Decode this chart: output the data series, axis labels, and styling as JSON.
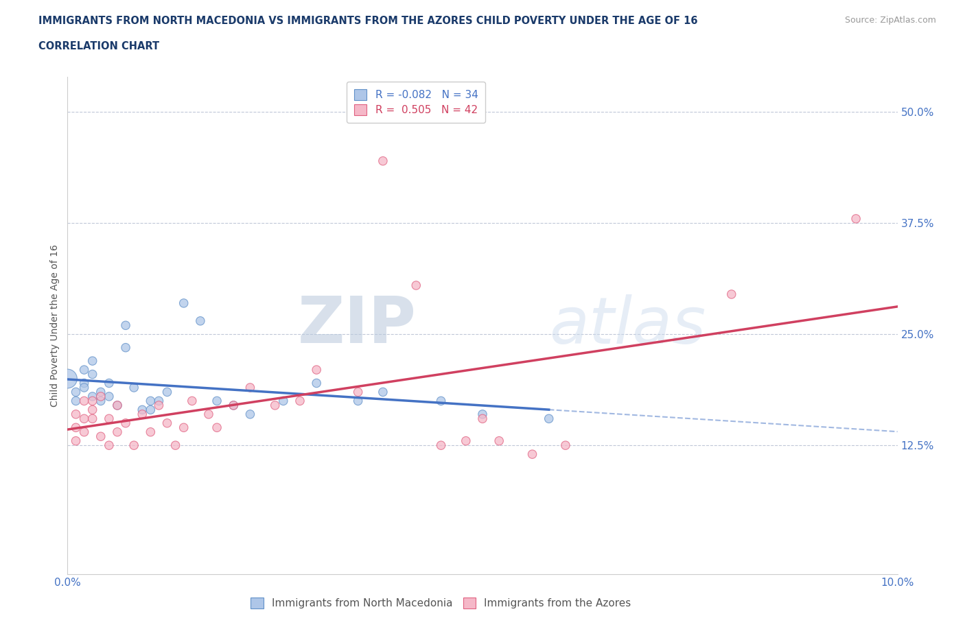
{
  "title": "IMMIGRANTS FROM NORTH MACEDONIA VS IMMIGRANTS FROM THE AZORES CHILD POVERTY UNDER THE AGE OF 16",
  "subtitle": "CORRELATION CHART",
  "source": "Source: ZipAtlas.com",
  "ylabel": "Child Poverty Under the Age of 16",
  "xlim": [
    0.0,
    0.1
  ],
  "ylim": [
    -0.02,
    0.54
  ],
  "ytick_positions": [
    0.0,
    0.125,
    0.25,
    0.375,
    0.5
  ],
  "ytick_labels": [
    "",
    "12.5%",
    "25.0%",
    "37.5%",
    "50.0%"
  ],
  "hlines": [
    0.125,
    0.25,
    0.375,
    0.5
  ],
  "blue_R": "-0.082",
  "blue_N": "34",
  "pink_R": "0.505",
  "pink_N": "42",
  "blue_color": "#aec6e8",
  "pink_color": "#f5b8c8",
  "blue_edge_color": "#6090c8",
  "pink_edge_color": "#e06080",
  "blue_line_color": "#4472c4",
  "pink_line_color": "#d04060",
  "blue_scatter": [
    [
      0.0,
      0.2
    ],
    [
      0.001,
      0.175
    ],
    [
      0.001,
      0.185
    ],
    [
      0.002,
      0.21
    ],
    [
      0.002,
      0.195
    ],
    [
      0.002,
      0.19
    ],
    [
      0.003,
      0.22
    ],
    [
      0.003,
      0.205
    ],
    [
      0.003,
      0.18
    ],
    [
      0.004,
      0.185
    ],
    [
      0.004,
      0.175
    ],
    [
      0.005,
      0.195
    ],
    [
      0.005,
      0.18
    ],
    [
      0.006,
      0.17
    ],
    [
      0.007,
      0.26
    ],
    [
      0.007,
      0.235
    ],
    [
      0.008,
      0.19
    ],
    [
      0.009,
      0.165
    ],
    [
      0.01,
      0.175
    ],
    [
      0.01,
      0.165
    ],
    [
      0.011,
      0.175
    ],
    [
      0.012,
      0.185
    ],
    [
      0.014,
      0.285
    ],
    [
      0.016,
      0.265
    ],
    [
      0.018,
      0.175
    ],
    [
      0.02,
      0.17
    ],
    [
      0.022,
      0.16
    ],
    [
      0.026,
      0.175
    ],
    [
      0.03,
      0.195
    ],
    [
      0.035,
      0.175
    ],
    [
      0.038,
      0.185
    ],
    [
      0.045,
      0.175
    ],
    [
      0.05,
      0.16
    ],
    [
      0.058,
      0.155
    ]
  ],
  "blue_sizes": [
    400,
    80,
    80,
    80,
    80,
    80,
    80,
    80,
    80,
    80,
    80,
    80,
    80,
    80,
    80,
    80,
    80,
    80,
    80,
    80,
    80,
    80,
    80,
    80,
    80,
    80,
    80,
    80,
    80,
    80,
    80,
    80,
    80,
    80
  ],
  "pink_scatter": [
    [
      0.001,
      0.13
    ],
    [
      0.001,
      0.145
    ],
    [
      0.001,
      0.16
    ],
    [
      0.002,
      0.175
    ],
    [
      0.002,
      0.155
    ],
    [
      0.002,
      0.14
    ],
    [
      0.003,
      0.175
    ],
    [
      0.003,
      0.155
    ],
    [
      0.003,
      0.165
    ],
    [
      0.004,
      0.18
    ],
    [
      0.004,
      0.135
    ],
    [
      0.005,
      0.155
    ],
    [
      0.005,
      0.125
    ],
    [
      0.006,
      0.17
    ],
    [
      0.006,
      0.14
    ],
    [
      0.007,
      0.15
    ],
    [
      0.008,
      0.125
    ],
    [
      0.009,
      0.16
    ],
    [
      0.01,
      0.14
    ],
    [
      0.011,
      0.17
    ],
    [
      0.012,
      0.15
    ],
    [
      0.013,
      0.125
    ],
    [
      0.014,
      0.145
    ],
    [
      0.015,
      0.175
    ],
    [
      0.017,
      0.16
    ],
    [
      0.018,
      0.145
    ],
    [
      0.02,
      0.17
    ],
    [
      0.022,
      0.19
    ],
    [
      0.025,
      0.17
    ],
    [
      0.028,
      0.175
    ],
    [
      0.03,
      0.21
    ],
    [
      0.035,
      0.185
    ],
    [
      0.038,
      0.445
    ],
    [
      0.042,
      0.305
    ],
    [
      0.045,
      0.125
    ],
    [
      0.048,
      0.13
    ],
    [
      0.05,
      0.155
    ],
    [
      0.052,
      0.13
    ],
    [
      0.056,
      0.115
    ],
    [
      0.06,
      0.125
    ],
    [
      0.08,
      0.295
    ],
    [
      0.095,
      0.38
    ]
  ],
  "pink_sizes": [
    80,
    80,
    80,
    80,
    80,
    80,
    80,
    80,
    80,
    80,
    80,
    80,
    80,
    80,
    80,
    80,
    80,
    80,
    80,
    80,
    80,
    80,
    80,
    80,
    80,
    80,
    80,
    80,
    80,
    80,
    80,
    80,
    80,
    80,
    80,
    80,
    80,
    80,
    80,
    80,
    80,
    80
  ],
  "watermark_zip": "ZIP",
  "watermark_atlas": "atlas",
  "title_color": "#1a3a6a",
  "tick_color": "#4472c4",
  "ylabel_color": "#555555"
}
